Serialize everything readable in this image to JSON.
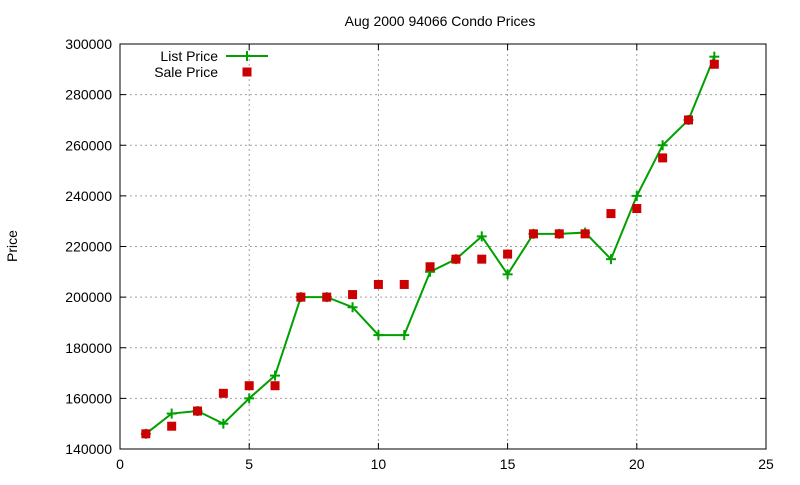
{
  "chart_data": {
    "type": "line",
    "title": "Aug 2000 94066 Condo Prices",
    "xlabel": "",
    "ylabel": "Price",
    "xlim": [
      0,
      25
    ],
    "ylim": [
      140000,
      300000
    ],
    "xticks": [
      0,
      5,
      10,
      15,
      20,
      25
    ],
    "yticks": [
      140000,
      160000,
      180000,
      200000,
      220000,
      240000,
      260000,
      280000,
      300000
    ],
    "grid": true,
    "legend_position": "top-left",
    "x": [
      1,
      2,
      3,
      4,
      5,
      6,
      7,
      8,
      9,
      10,
      11,
      12,
      13,
      14,
      15,
      16,
      17,
      18,
      19,
      20,
      21,
      22,
      23
    ],
    "series": [
      {
        "name": "List Price",
        "style": "linespoints",
        "marker": "plus",
        "color": "#00a000",
        "values": [
          146000,
          154000,
          155000,
          150000,
          160000,
          169000,
          200000,
          200000,
          196000,
          185000,
          185000,
          210000,
          215000,
          224000,
          209000,
          225000,
          225000,
          225500,
          215000,
          240000,
          260000,
          270000,
          295000
        ]
      },
      {
        "name": "Sale Price",
        "style": "points",
        "marker": "square",
        "color": "#cc0000",
        "values": [
          146000,
          149000,
          155000,
          162000,
          165000,
          165000,
          200000,
          200000,
          201000,
          205000,
          205000,
          212000,
          215000,
          215000,
          217000,
          225000,
          225000,
          225000,
          233000,
          235000,
          255000,
          270000,
          292000
        ]
      }
    ]
  }
}
